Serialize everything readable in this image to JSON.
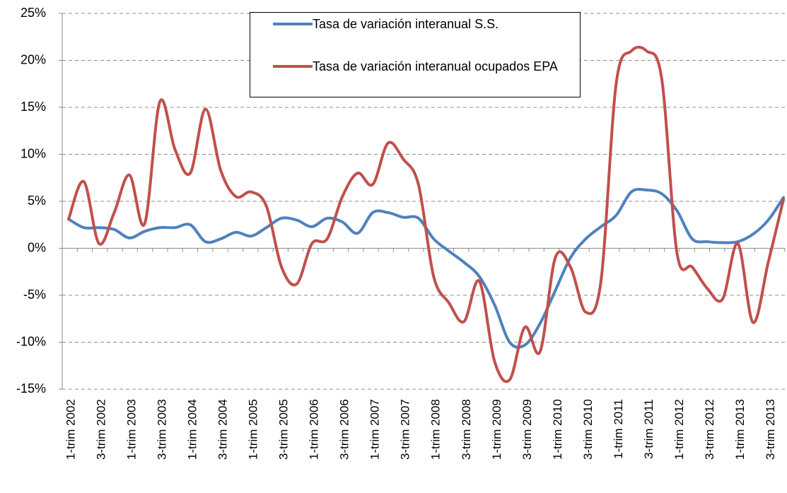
{
  "chart_data": {
    "type": "line",
    "categories": [
      "1-trim 2002",
      null,
      "3-trim 2002",
      null,
      "1-trim 2003",
      null,
      "3-trim 2003",
      null,
      "1-trim 2004",
      null,
      "3-trim 2004",
      null,
      "1-trim 2005",
      null,
      "3-trim 2005",
      null,
      "1-trim 2006",
      null,
      "3-trim 2006",
      null,
      "1-trim 2007",
      null,
      "3-trim 2007",
      null,
      "1-trim 2008",
      null,
      "3-trim 2008",
      null,
      "1-trim 2009",
      null,
      "3-trim 2009",
      null,
      "1-trim 2010",
      null,
      "3-trim 2010",
      null,
      "1-trim 2011",
      null,
      "3-trim 2011",
      null,
      "1-trim 2012",
      null,
      "3-trim 2012",
      null,
      "1-trim 2013",
      null,
      "3-trim 2013",
      null
    ],
    "series": [
      {
        "name": "Tasa de variación interanual S.S.",
        "color": "#4f81bd",
        "values": [
          3.1,
          2.2,
          2.2,
          2.0,
          1.1,
          1.8,
          2.2,
          2.2,
          2.5,
          0.7,
          1.0,
          1.7,
          1.3,
          2.2,
          3.2,
          3.0,
          2.3,
          3.2,
          2.8,
          1.6,
          3.8,
          3.8,
          3.3,
          3.2,
          1.0,
          -0.3,
          -1.5,
          -3.0,
          -6.0,
          -10.0,
          -10.3,
          -8.0,
          -4.5,
          -1.0,
          1.0,
          2.3,
          3.5,
          6.0,
          6.2,
          5.8,
          4.0,
          1.0,
          0.7,
          0.6,
          0.7,
          1.5,
          3.0,
          5.4
        ]
      },
      {
        "name": "Tasa de variación interanual ocupados EPA",
        "color": "#c0504d",
        "values": [
          3.1,
          7.1,
          0.5,
          3.8,
          7.8,
          2.6,
          15.6,
          10.5,
          8.0,
          14.8,
          8.3,
          5.5,
          6.0,
          4.5,
          -2.0,
          -3.8,
          0.5,
          1.0,
          5.5,
          8.0,
          6.8,
          11.2,
          9.5,
          6.8,
          -3.0,
          -5.8,
          -7.8,
          -3.5,
          -12.0,
          -14.0,
          -8.4,
          -11.0,
          -1.0,
          -2.0,
          -6.8,
          -3.5,
          17.5,
          21.0,
          21.0,
          18.0,
          -0.5,
          -2.0,
          -4.3,
          -5.4,
          0.5,
          -7.9,
          -1.5,
          5.2
        ]
      }
    ],
    "ylim": [
      -15,
      25
    ],
    "yticks": [
      {
        "value": -15,
        "label": "-15%"
      },
      {
        "value": -10,
        "label": "-10%"
      },
      {
        "value": -5,
        "label": "-5%"
      },
      {
        "value": 0,
        "label": "0%"
      },
      {
        "value": 5,
        "label": "5%"
      },
      {
        "value": 10,
        "label": "10%"
      },
      {
        "value": 15,
        "label": "15%"
      },
      {
        "value": 20,
        "label": "20%"
      },
      {
        "value": 25,
        "label": "25%"
      }
    ],
    "grid": true,
    "smooth": true,
    "legend": "top"
  }
}
